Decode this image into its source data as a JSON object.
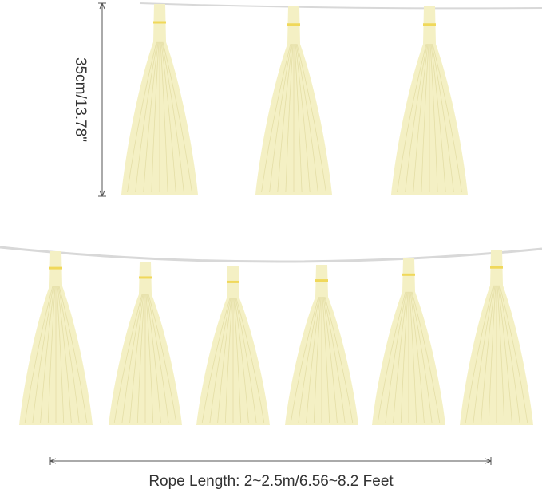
{
  "product": {
    "tassel_color": "#f4f0c4",
    "band_color": "#f0d85a",
    "top_row_count": 3,
    "bottom_row_count": 6
  },
  "dimensions": {
    "height_label": "35cm/13.78\"",
    "rope_label": "Rope Length: 2~2.5m/6.56~8.2 Feet"
  }
}
